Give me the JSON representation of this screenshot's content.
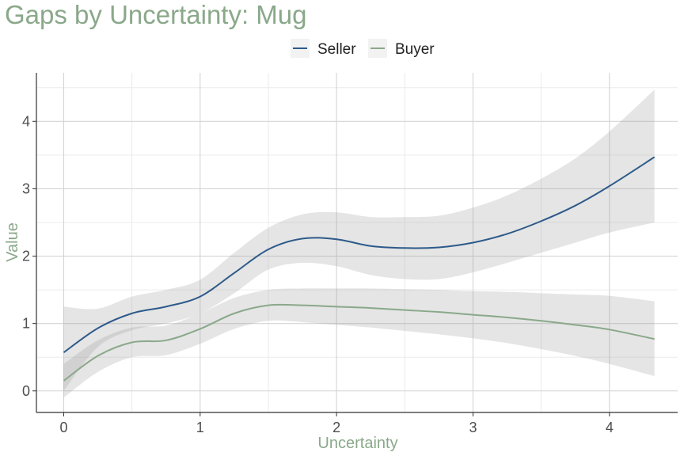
{
  "chart_data": {
    "type": "line",
    "title": "Gaps by Uncertainty: Mug",
    "xlabel": "Uncertainty",
    "ylabel": "Value",
    "xlim": [
      -0.2,
      4.5
    ],
    "ylim": [
      -0.32,
      4.72
    ],
    "x_ticks": [
      0,
      1,
      2,
      3,
      4
    ],
    "y_ticks": [
      0,
      1,
      2,
      3,
      4
    ],
    "grid": true,
    "legend": "top-center",
    "series": [
      {
        "name": "Seller",
        "color": "#2d5a8a",
        "x": [
          0,
          0.25,
          0.5,
          0.75,
          1.0,
          1.25,
          1.5,
          1.75,
          2.0,
          2.25,
          2.5,
          2.75,
          3.0,
          3.25,
          3.5,
          3.75,
          4.0,
          4.33
        ],
        "values": [
          0.57,
          0.93,
          1.15,
          1.25,
          1.4,
          1.75,
          2.1,
          2.26,
          2.25,
          2.15,
          2.12,
          2.13,
          2.2,
          2.33,
          2.52,
          2.75,
          3.04,
          3.47
        ],
        "lower": [
          0.0,
          0.65,
          0.9,
          1.0,
          1.15,
          1.45,
          1.8,
          1.9,
          1.85,
          1.72,
          1.66,
          1.66,
          1.76,
          1.9,
          2.05,
          2.2,
          2.35,
          2.5
        ],
        "upper": [
          1.25,
          1.22,
          1.4,
          1.5,
          1.65,
          2.05,
          2.42,
          2.62,
          2.65,
          2.58,
          2.58,
          2.6,
          2.72,
          2.9,
          3.15,
          3.45,
          3.85,
          4.47
        ]
      },
      {
        "name": "Buyer",
        "color": "#8aa88a",
        "x": [
          0,
          0.25,
          0.5,
          0.75,
          1.0,
          1.25,
          1.5,
          1.75,
          2.0,
          2.25,
          2.5,
          2.75,
          3.0,
          3.25,
          3.5,
          3.75,
          4.0,
          4.33
        ],
        "values": [
          0.15,
          0.52,
          0.72,
          0.75,
          0.92,
          1.15,
          1.27,
          1.27,
          1.25,
          1.23,
          1.2,
          1.17,
          1.13,
          1.09,
          1.04,
          0.98,
          0.91,
          0.77
        ],
        "lower": [
          -0.1,
          0.28,
          0.5,
          0.53,
          0.7,
          0.92,
          1.04,
          1.02,
          0.98,
          0.94,
          0.89,
          0.84,
          0.78,
          0.71,
          0.62,
          0.52,
          0.4,
          0.22
        ],
        "upper": [
          0.4,
          0.75,
          0.94,
          0.97,
          1.15,
          1.38,
          1.5,
          1.52,
          1.52,
          1.52,
          1.51,
          1.5,
          1.48,
          1.47,
          1.45,
          1.43,
          1.41,
          1.33
        ]
      }
    ]
  }
}
